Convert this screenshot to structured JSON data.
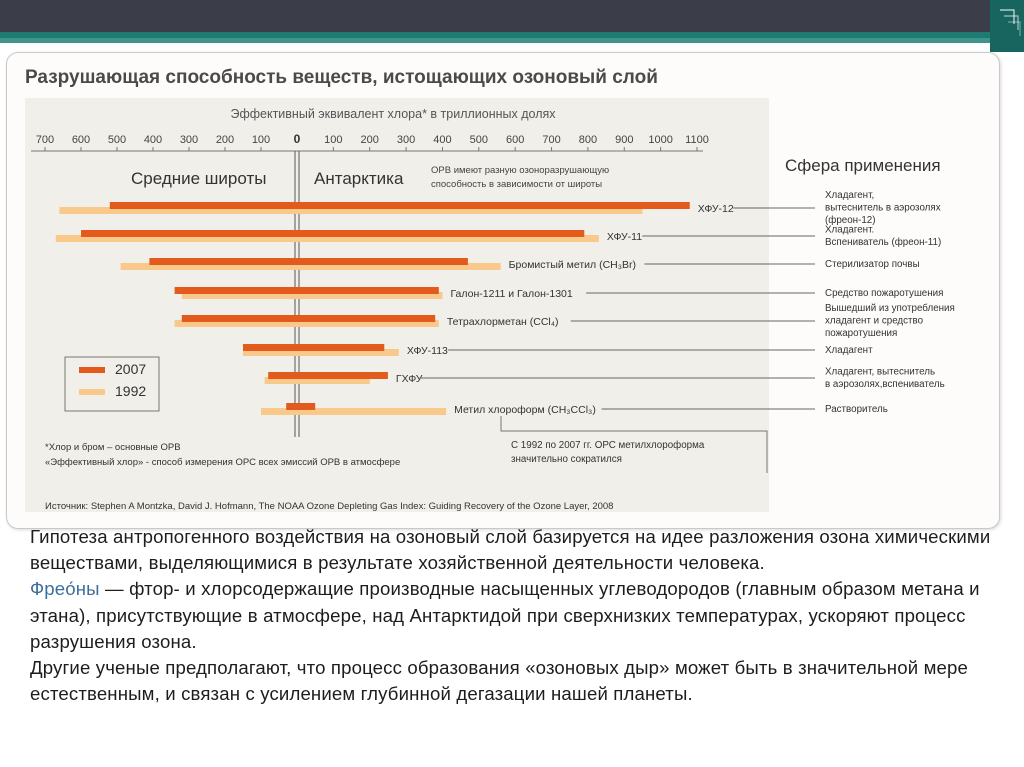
{
  "colors": {
    "top_bar": "#3b3e48",
    "accent_bar": "#1f7a72",
    "bar_2007": "#e25a1c",
    "bar_1992": "#f9c98c",
    "chart_bg": "#f1efea",
    "freon_link": "#3e6e9c"
  },
  "chart_data": {
    "type": "bar",
    "orientation": "horizontal-diverging",
    "title": "Разрушающая способность веществ, истощающих озоновый слой",
    "xlabel": "Эффективный эквивалент хлора* в триллионных долях",
    "x_ticks_left": [
      "700",
      "600",
      "500",
      "400",
      "300",
      "200",
      "100"
    ],
    "x_ticks_center": "0",
    "x_ticks_right": [
      "100",
      "200",
      "300",
      "400",
      "500",
      "600",
      "700",
      "800",
      "900",
      "1000",
      "1100"
    ],
    "xlim_left": [
      0,
      700
    ],
    "xlim_right": [
      0,
      1100
    ],
    "left_region_label": "Средние широты",
    "right_region_label": "Антарктика",
    "right_note_lines": [
      "ОРВ имеют разную озоноразрушающую",
      "способность в зависимости от широты"
    ],
    "usage_header": "Сфера применения",
    "categories": [
      "ХФУ-12",
      "ХФУ-11",
      "Бромистый метил (CH₃Br)",
      "Галон-1211 и Галон-1301",
      "Тетрахлорметан (CCl₄)",
      "ХФУ-113",
      "ГХФУ",
      "Метил хлороформ (CH₃CCl₃)"
    ],
    "usage": [
      [
        "Хладагент,",
        "вытеснитель в аэрозолях",
        "(фреон-12)"
      ],
      [
        "Хладагент.",
        "Вспениватель (фреон-11)"
      ],
      [
        "Стерилизатор почвы"
      ],
      [
        "Средство пожаротушения"
      ],
      [
        "Вышедший из употребления",
        "хладагент и средство",
        "пожаротушения"
      ],
      [
        "Хладагент"
      ],
      [
        "Хладагент, вытеснитель",
        "в аэрозолях,вспениватель"
      ],
      [
        "Растворитель"
      ]
    ],
    "series": [
      {
        "name": "2007",
        "color": "#e25a1c",
        "mid_latitudes": [
          520,
          600,
          410,
          340,
          320,
          150,
          80,
          30
        ],
        "antarctic": [
          1080,
          790,
          470,
          390,
          380,
          240,
          250,
          50
        ]
      },
      {
        "name": "1992",
        "color": "#f9c98c",
        "mid_latitudes": [
          660,
          670,
          490,
          320,
          340,
          150,
          90,
          100
        ],
        "antarctic": [
          950,
          830,
          560,
          400,
          390,
          280,
          200,
          410
        ]
      }
    ],
    "legend_position": "bottom-left",
    "footnote_lines": [
      "*Хлор и бром – основные ОРВ",
      "«Эффективный хлор» - способ измерения ОРС всех эмиссий ОРВ в атмосфере"
    ],
    "annotation_lines": [
      "С 1992 по 2007 гг. ОРС метилхлороформа",
      "значительно сократился"
    ],
    "source": "Источник: Stephen A Montzka, David J. Hofmann, The NOAA Ozone Depleting Gas Index: Guiding Recovery of the Ozone Layer, 2008"
  },
  "body_text": {
    "p1": "Гипотеза антропогенного воздействия на озоновый слой базируется на идее разложения озона химическими веществами, выделяющимися в результате хозяйственной деятельности человека.",
    "p2_link": "Фрео́ны",
    "p2_rest": " — фтор- и хлорсодержащие производные насыщенных углеводородов (главным образом метана и этана), присутствующие в атмосфере, над Антарктидой при сверхнизких температурах, ускоряют процесс разрушения озона.",
    "p3": "Другие ученые предполагают, что процесс образования «озоновых дыр» может быть в значительной мере естественным, и связан с усилением глубинной дегазации нашей планеты."
  }
}
